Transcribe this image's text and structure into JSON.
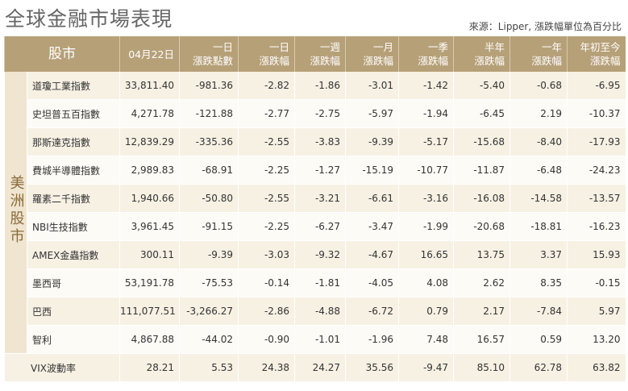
{
  "header": {
    "title": "全球金融市場表現",
    "source": "來源：Lipper, 漲跌幅單位為百分比"
  },
  "table": {
    "columns": [
      [
        "股市"
      ],
      [
        "04月22日"
      ],
      [
        "一日",
        "漲跌點數"
      ],
      [
        "一日",
        "漲跌幅"
      ],
      [
        "一週",
        "漲跌幅"
      ],
      [
        "一月",
        "漲跌幅"
      ],
      [
        "一季",
        "漲跌幅"
      ],
      [
        "半年",
        "漲跌幅"
      ],
      [
        "一年",
        "漲跌幅"
      ],
      [
        "年初至今",
        "漲跌幅"
      ]
    ],
    "sections": [
      {
        "label": "美洲股市",
        "rows": [
          [
            "道瓊工業指數",
            "33,811.40",
            "-981.36",
            "-2.82",
            "-1.86",
            "-3.01",
            "-1.42",
            "-5.40",
            "-0.68",
            "-6.95"
          ],
          [
            "史坦普五百指數",
            "4,271.78",
            "-121.88",
            "-2.77",
            "-2.75",
            "-5.97",
            "-1.94",
            "-6.45",
            "2.19",
            "-10.37"
          ],
          [
            "那斯達克指數",
            "12,839.29",
            "-335.36",
            "-2.55",
            "-3.83",
            "-9.39",
            "-5.17",
            "-15.68",
            "-8.40",
            "-17.93"
          ],
          [
            "費城半導體指數",
            "2,989.83",
            "-68.91",
            "-2.25",
            "-1.27",
            "-15.19",
            "-10.77",
            "-11.87",
            "-6.48",
            "-24.23"
          ],
          [
            "羅素二千指數",
            "1,940.66",
            "-50.80",
            "-2.55",
            "-3.21",
            "-6.61",
            "-3.16",
            "-16.08",
            "-14.58",
            "-13.57"
          ],
          [
            "NBI生技指數",
            "3,961.45",
            "-91.15",
            "-2.25",
            "-6.27",
            "-3.47",
            "-1.99",
            "-20.68",
            "-18.81",
            "-16.23"
          ],
          [
            "AMEX金蟲指數",
            "300.11",
            "-9.39",
            "-3.03",
            "-9.32",
            "-4.67",
            "16.65",
            "13.75",
            "3.37",
            "15.93"
          ],
          [
            "墨西哥",
            "53,191.78",
            "-75.53",
            "-0.14",
            "-1.81",
            "-4.05",
            "4.08",
            "2.62",
            "8.35",
            "-0.15"
          ],
          [
            "巴西",
            "111,077.51",
            "-3,266.27",
            "-2.86",
            "-4.88",
            "-6.72",
            "0.79",
            "2.17",
            "-7.84",
            "5.97"
          ],
          [
            "智利",
            "4,867.88",
            "-44.02",
            "-0.90",
            "-1.01",
            "-1.96",
            "7.48",
            "16.57",
            "0.59",
            "13.20"
          ]
        ]
      },
      {
        "rows": [
          [
            "VIX波動率",
            "28.21",
            "5.53",
            "24.38",
            "24.27",
            "35.56",
            "-9.47",
            "85.10",
            "62.78",
            "63.82"
          ]
        ]
      }
    ]
  }
}
